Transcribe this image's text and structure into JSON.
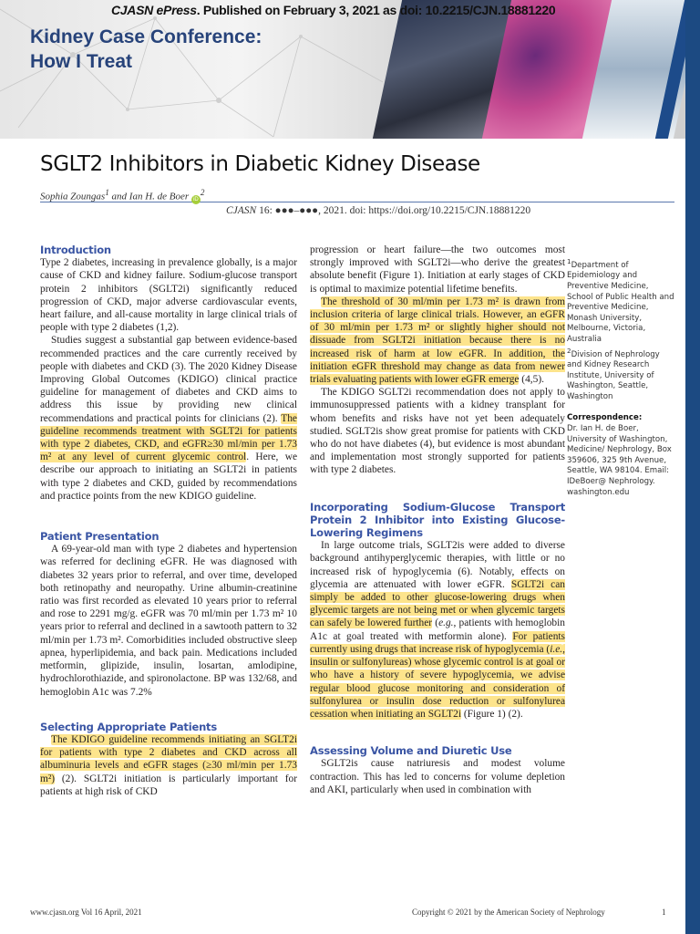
{
  "banner": {
    "series_title_line1": "Kidney Case Conference:",
    "series_title_line2": "How I Treat",
    "epress_journal": "CJASN ePress",
    "epress_text": ". Published on February 3, 2021 as doi: 10.2215/CJN.18881220"
  },
  "article": {
    "title": "SGLT2 Inhibitors in Diabetic Kidney Disease",
    "author1": "Sophia Zoungas",
    "author1_sup": "1",
    "author_join": " and ",
    "author2": "Ian H. de Boer",
    "author2_sup": "2",
    "orcid_label": "iD",
    "citation_journal": "CJASN",
    "citation_text": " 16: ●●●–●●●, 2021. doi: https://doi.org/10.2215/CJN.18881220"
  },
  "sections": {
    "introduction": {
      "heading": "Introduction",
      "p1": "Type 2 diabetes, increasing in prevalence globally, is a major cause of CKD and kidney failure. Sodium-glucose transport protein 2 inhibitors (SGLT2i) significantly reduced progression of CKD, major adverse cardiovascular events, heart failure, and all-cause mortality in large clinical trials of people with type 2 diabetes (1,2).",
      "p2_a": "Studies suggest a substantial gap between evidence-based recommended practices and the care currently received by people with diabetes and CKD (3). The 2020 Kidney Disease Improving Global Outcomes (KDIGO) clinical practice guideline for management of diabetes and CKD aims to address this issue by providing new clinical recommendations and practical points for clinicians (2). ",
      "p2_hl": "The guideline recommends treatment with SGLT2i for patients with type 2 diabetes, CKD, and eGFR≥30 ml/min per 1.73 m² at any level of current glycemic control",
      "p2_b": ". Here, we describe our approach to initiating an SGLT2i in patients with type 2 diabetes and CKD, guided by recommendations and practice points from the new KDIGO guideline."
    },
    "patient_presentation": {
      "heading": "Patient Presentation",
      "p1": "A 69-year-old man with type 2 diabetes and hypertension was referred for declining eGFR. He was diagnosed with diabetes 32 years prior to referral, and over time, developed both retinopathy and neuropathy. Urine albumin-creatinine ratio was first recorded as elevated 10 years prior to referral and rose to 2291 mg/g. eGFR was 70 ml/min per 1.73 m² 10 years prior to referral and declined in a sawtooth pattern to 32 ml/min per 1.73 m². Comorbidities included obstructive sleep apnea, hyperlipidemia, and back pain. Medications included metformin, glipizide, insulin, losartan, amlodipine, hydrochlorothiazide, and spironolactone. BP was 132/68, and hemoglobin A1c was 7.2%"
    },
    "selecting_patients": {
      "heading": "Selecting Appropriate Patients",
      "p1_hl": "The KDIGO guideline recommends initiating an SGLT2i for patients with type 2 diabetes and CKD across all albuminuria levels and eGFR stages (≥30 ml/min per 1.73 m²)",
      "p1_b": " (2). SGLT2i initiation is particularly important for patients at high risk of CKD"
    },
    "middle_top": {
      "p1": "progression or heart failure—the two outcomes most strongly improved with SGLT2i—who derive the greatest absolute benefit (Figure 1). Initiation at early stages of CKD is optimal to maximize potential lifetime benefits.",
      "p2_hl": "The threshold of 30 ml/min per 1.73 m² is drawn from inclusion criteria of large clinical trials. However, an eGFR of 30 ml/min per 1.73 m² or slightly higher should not dissuade from SGLT2i initiation because there is no increased risk of harm at low eGFR. In addition, the initiation eGFR threshold may change as data from newer trials evaluating patients with lower eGFR emerge",
      "p2_b": " (4,5).",
      "p3": "The KDIGO SGLT2i recommendation does not apply to immunosuppressed patients with a kidney transplant for whom benefits and risks have not yet been adequately studied. SGLT2is show great promise for patients with CKD who do not have diabetes (4), but evidence is most abundant and implementation most strongly supported for patients with type 2 diabetes."
    },
    "incorporating": {
      "heading": "Incorporating Sodium-Glucose Transport Protein 2 Inhibitor into Existing Glucose-Lowering Regimens",
      "p1_a": "In large outcome trials, SGLT2is were added to diverse background antihyperglycemic therapies, with little or no increased risk of hypoglycemia (6). Notably, effects on glycemia are attenuated with lower eGFR. ",
      "p1_hl1": "SGLT2i can simply be added to other glucose-lowering drugs when glycemic targets are not being met or when glycemic targets can safely be lowered further",
      "p1_b1": " (",
      "p1_eg": "e.g.",
      "p1_b2": ", patients with hemoglobin A1c at goal treated with metformin alone). ",
      "p1_hl2a": "For patients currently using drugs that increase risk of hypoglycemia (",
      "p1_ie": "i.e.",
      "p1_hl2b": ", insulin or sulfonylureas) whose glycemic control is at goal or who have a history of severe hypoglycemia, we advise regular blood glucose monitoring and consideration of sulfonylurea or insulin dose reduction or sulfonylurea cessation when initiating an SGLT2i",
      "p1_c": " (Figure 1) (2)."
    },
    "assessing_volume": {
      "heading": "Assessing Volume and Diuretic Use",
      "p1": "SGLT2is cause natriuresis and modest volume contraction. This has led to concerns for volume depletion and AKI, particularly when used in combination with"
    }
  },
  "sidebar": {
    "aff1_sup": "1",
    "aff1": "Department of Epidemiology and Preventive Medicine, School of Public Health and Preventive Medicine, Monash University, Melbourne, Victoria, Australia",
    "aff2_sup": "2",
    "aff2": "Division of Nephrology and Kidney Research Institute, University of Washington, Seattle, Washington",
    "correspondence_label": "Correspondence:",
    "correspondence": "Dr. Ian H. de Boer, University of Washington, Medicine/ Nephrology, Box 359606, 325 9th Avenue, Seattle, WA 98104. Email: IDeBoer@ Nephrology. washington.edu"
  },
  "footer": {
    "left": "www.cjasn.org Vol 16 April, 2021",
    "copyright": "Copyright © 2021 by the American Society of Nephrology",
    "page_number": "1"
  },
  "colors": {
    "heading_blue": "#3a55a4",
    "highlight": "#fde48c",
    "brand_blue": "#1c4a82"
  }
}
